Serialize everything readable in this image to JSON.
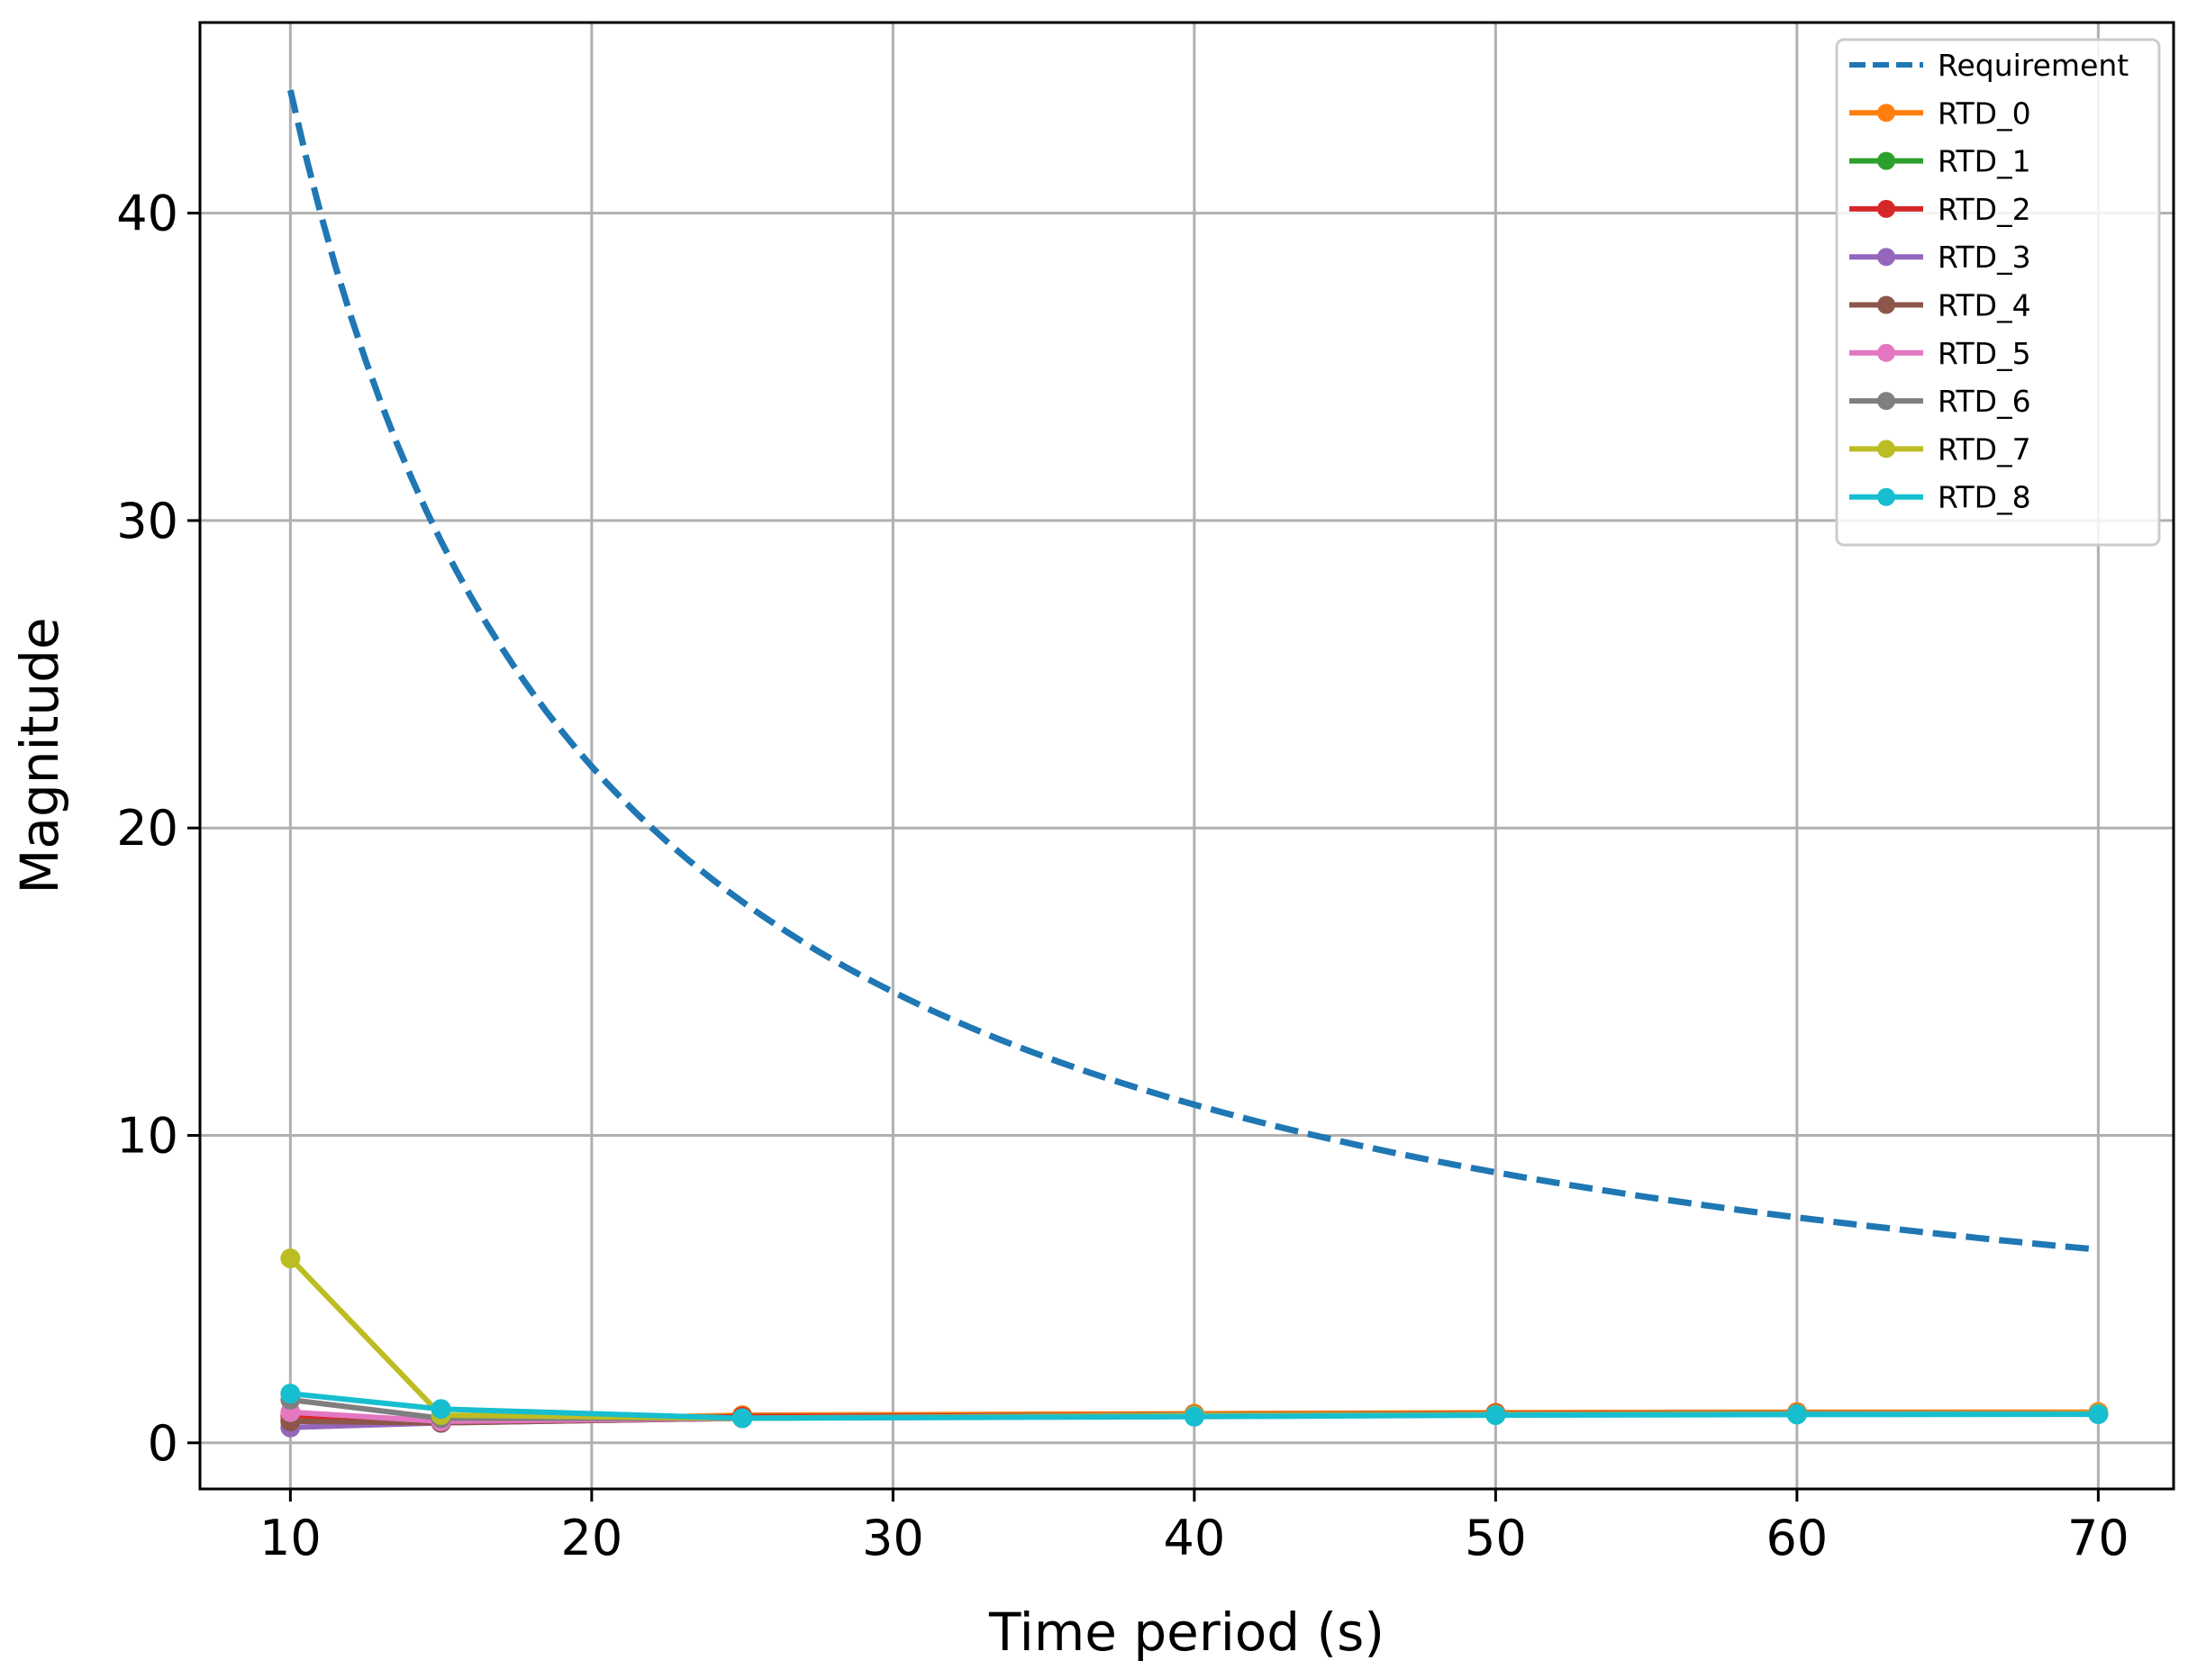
{
  "chart_data": {
    "type": "line",
    "xlabel": "Time period (s)",
    "ylabel": "Magnitude",
    "xlim": [
      7,
      72.5
    ],
    "ylim": [
      -1.5,
      46.2
    ],
    "xticks": [
      10,
      20,
      30,
      40,
      50,
      60,
      70
    ],
    "yticks": [
      0,
      10,
      20,
      30,
      40
    ],
    "grid": true,
    "legend_position": "top-right",
    "x": [
      10,
      15,
      25,
      40,
      50,
      60,
      70
    ],
    "series": [
      {
        "name": "Requirement",
        "color": "#1f77b4",
        "style": "dashed",
        "curve": "inverse",
        "coefficient": 440,
        "x_range": [
          10,
          70
        ]
      },
      {
        "name": "RTD_0",
        "color": "#ff7f0e",
        "values": [
          0.8,
          0.7,
          0.9,
          0.95,
          0.98,
          1.0,
          1.0
        ]
      },
      {
        "name": "RTD_1",
        "color": "#2ca02c",
        "values": [
          0.7,
          0.7,
          0.85,
          0.9,
          0.95,
          0.95,
          0.95
        ]
      },
      {
        "name": "RTD_2",
        "color": "#d62728",
        "values": [
          0.9,
          0.7,
          0.85,
          0.9,
          0.95,
          0.95,
          0.95
        ]
      },
      {
        "name": "RTD_3",
        "color": "#9467bd",
        "values": [
          0.5,
          0.65,
          0.8,
          0.9,
          0.92,
          0.95,
          0.95
        ]
      },
      {
        "name": "RTD_4",
        "color": "#8c564b",
        "values": [
          0.7,
          0.65,
          0.8,
          0.9,
          0.92,
          0.95,
          0.95
        ]
      },
      {
        "name": "RTD_5",
        "color": "#e377c2",
        "values": [
          1.0,
          0.7,
          0.8,
          0.9,
          0.92,
          0.95,
          0.95
        ]
      },
      {
        "name": "RTD_6",
        "color": "#7f7f7f",
        "values": [
          1.4,
          0.8,
          0.8,
          0.9,
          0.92,
          0.95,
          0.95
        ]
      },
      {
        "name": "RTD_7",
        "color": "#bcbd22",
        "values": [
          6.0,
          0.9,
          0.8,
          0.88,
          0.92,
          0.93,
          0.95
        ]
      },
      {
        "name": "RTD_8",
        "color": "#17becf",
        "values": [
          1.6,
          1.1,
          0.8,
          0.85,
          0.9,
          0.92,
          0.93
        ]
      }
    ]
  }
}
